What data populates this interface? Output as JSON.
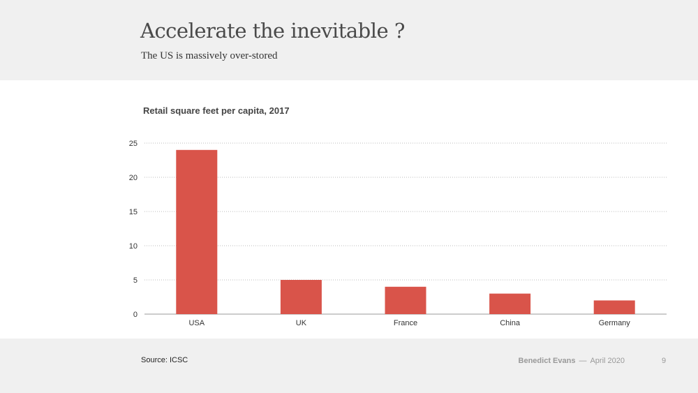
{
  "slide": {
    "title": "Accelerate the inevitable ?",
    "subtitle": "The US is massively over-stored"
  },
  "footer": {
    "source": "Source: ICSC",
    "author": "Benedict Evans",
    "separator": "—",
    "date": "April 2020",
    "page": "9"
  },
  "colors": {
    "bar": "#d9544a",
    "grid": "#bbbbbb",
    "axis": "#999999"
  },
  "chart_data": {
    "type": "bar",
    "title": "Retail square feet per capita, 2017",
    "categories": [
      "USA",
      "UK",
      "France",
      "China",
      "Germany"
    ],
    "values": [
      24,
      5,
      4,
      3,
      2
    ],
    "xlabel": "",
    "ylabel": "",
    "ylim": [
      0,
      25
    ],
    "yticks": [
      0,
      5,
      10,
      15,
      20,
      25
    ],
    "grid": true,
    "legend": "none"
  }
}
